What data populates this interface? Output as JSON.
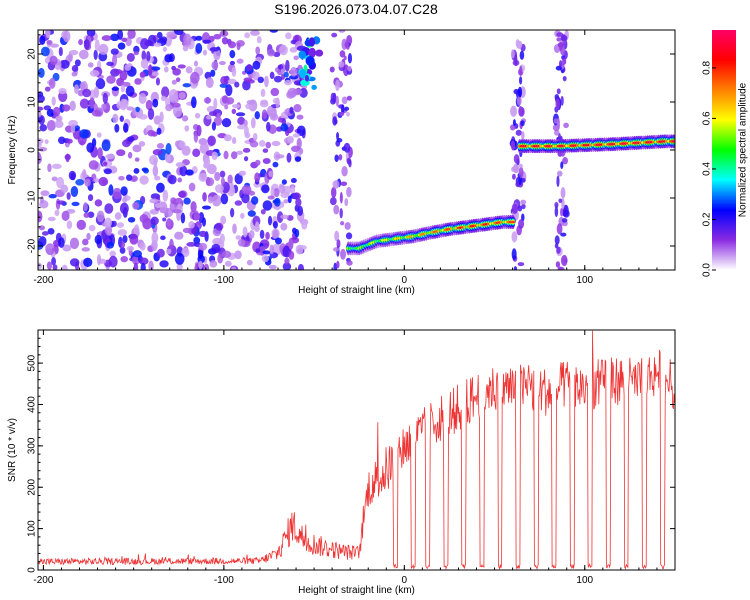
{
  "title": "S196.2026.073.04.07.C28",
  "chart_data": [
    {
      "type": "heatmap",
      "xlabel": "Height of straight line (km)",
      "ylabel": "Frequency (Hz)",
      "xlim": [
        -203,
        150
      ],
      "ylim": [
        -25,
        25
      ],
      "xticks": [
        -200,
        -100,
        0,
        100
      ],
      "yticks": [
        -20,
        -10,
        0,
        10,
        20
      ],
      "xtick_labels": [
        "-200",
        "-100",
        "0",
        "100"
      ],
      "ytick_labels": [
        "-20",
        "-10",
        "0",
        "10",
        "20"
      ],
      "colorbar": {
        "label": "Normalized spectral amplitude",
        "range": [
          0,
          0.95
        ],
        "ticks": [
          0.0,
          0.2,
          0.4,
          0.6,
          0.8
        ],
        "tick_labels": [
          "0.0",
          "0.2",
          "0.4",
          "0.6",
          "0.8"
        ],
        "colors": [
          "#ffffff",
          "#8a2be2",
          "#0000ff",
          "#00ffff",
          "#00ff00",
          "#ffff00",
          "#ff8000",
          "#ff0000",
          "#ff0066"
        ]
      },
      "features": {
        "noise_region_x": [
          -203,
          -55
        ],
        "clean_track": [
          {
            "x": -25,
            "freq": -20.5,
            "amp": 0.55
          },
          {
            "x": -15,
            "freq": -19.0,
            "amp": 0.6
          },
          {
            "x": -5,
            "freq": -18.5,
            "amp": 0.65
          },
          {
            "x": 5,
            "freq": -18.0,
            "amp": 0.7
          },
          {
            "x": 15,
            "freq": -17.2,
            "amp": 0.75
          },
          {
            "x": 25,
            "freq": -16.5,
            "amp": 0.8
          },
          {
            "x": 35,
            "freq": -16.0,
            "amp": 0.85
          },
          {
            "x": 45,
            "freq": -15.5,
            "amp": 0.85
          },
          {
            "x": 55,
            "freq": -15.0,
            "amp": 0.8
          }
        ],
        "upper_track": [
          {
            "x": 70,
            "freq": 0.8,
            "amp": 0.9
          },
          {
            "x": 85,
            "freq": 0.8,
            "amp": 0.9
          },
          {
            "x": 100,
            "freq": 1.0,
            "amp": 0.9
          },
          {
            "x": 115,
            "freq": 1.2,
            "amp": 0.9
          },
          {
            "x": 130,
            "freq": 1.5,
            "amp": 0.9
          },
          {
            "x": 145,
            "freq": 1.8,
            "amp": 0.92
          }
        ],
        "blob": {
          "x": -52,
          "freq": 18,
          "amp": 0.35
        }
      }
    },
    {
      "type": "line",
      "xlabel": "Height of straight line (km)",
      "ylabel": "SNR (10 * v/v)",
      "xlim": [
        -203,
        150
      ],
      "ylim": [
        0,
        580
      ],
      "xticks": [
        -200,
        -100,
        0,
        100
      ],
      "yticks": [
        0,
        100,
        200,
        300,
        400,
        500
      ],
      "xtick_labels": [
        "-200",
        "-100",
        "0",
        "100"
      ],
      "ytick_labels": [
        "0",
        "100",
        "200",
        "300",
        "400",
        "500"
      ],
      "color": "#ee3333",
      "series": [
        {
          "name": "SNR",
          "envelope_x": [
            -203,
            -80,
            -70,
            -62,
            -55,
            -45,
            -35,
            -25,
            -20,
            -10,
            0,
            10,
            20,
            30,
            40,
            50,
            60,
            70,
            80,
            90,
            100,
            110,
            120,
            130,
            140,
            150
          ],
          "envelope_y": [
            20,
            22,
            40,
            110,
            70,
            55,
            45,
            40,
            200,
            240,
            300,
            330,
            370,
            390,
            420,
            440,
            440,
            440,
            430,
            450,
            440,
            450,
            460,
            450,
            480,
            440
          ],
          "noise": [
            8,
            8,
            20,
            45,
            30,
            25,
            20,
            18,
            50,
            60,
            60,
            60,
            60,
            60,
            60,
            60,
            60,
            60,
            60,
            60,
            60,
            60,
            60,
            60,
            60,
            60
          ],
          "dropouts_x": [
            -5,
            5,
            13,
            23,
            33,
            43,
            53,
            63,
            73,
            83,
            93,
            103,
            113,
            123,
            133,
            143
          ]
        }
      ]
    }
  ]
}
